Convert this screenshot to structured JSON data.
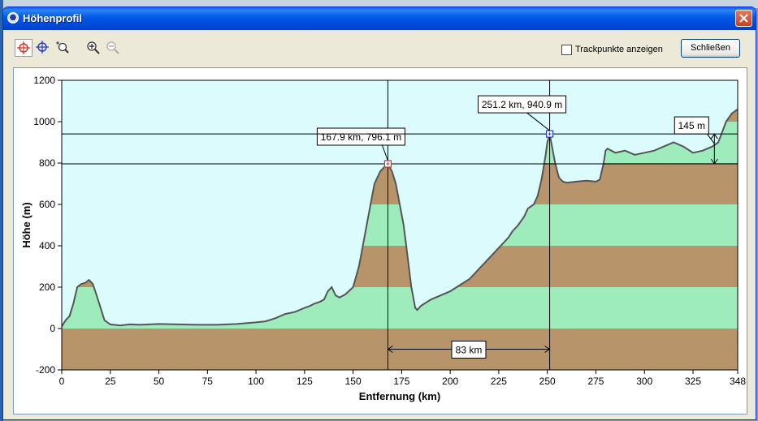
{
  "window": {
    "title": "Höhenprofil",
    "close_glyph": "×"
  },
  "toolbar": {
    "tools": [
      {
        "name": "crosshair-red-icon",
        "active": true
      },
      {
        "name": "crosshair-blue-icon",
        "active": false
      },
      {
        "name": "zoom-area-icon",
        "active": false
      },
      {
        "name": "zoom-in-icon",
        "active": false
      },
      {
        "name": "zoom-out-icon",
        "active": false
      }
    ],
    "trackpoints_label": "Trackpunkte anzeigen",
    "trackpoints_checked": false,
    "close_label": "Schließen"
  },
  "colors": {
    "sky": "#dbfbfc",
    "band_brown": "#b8946a",
    "band_green": "#9eecbc",
    "profile_line": "#555555",
    "marker_red": "#d9342b",
    "marker_blue": "#2a3fbf"
  },
  "chart_data": {
    "type": "area",
    "title": "",
    "xlabel": "Entfernung   (km)",
    "ylabel": "Höhe (m)",
    "xlim": [
      0,
      348
    ],
    "ylim": [
      -200,
      1200
    ],
    "x_ticks": [
      "0",
      "25",
      "50",
      "75",
      "100",
      "125",
      "150",
      "175",
      "200",
      "225",
      "250",
      "275",
      "300",
      "325",
      "348"
    ],
    "y_ticks": [
      "1200",
      "1000",
      "800",
      "600",
      "400",
      "200",
      "0",
      "-200"
    ],
    "bands": [
      {
        "from": -200,
        "to": 0,
        "color": "brown"
      },
      {
        "from": 0,
        "to": 200,
        "color": "green"
      },
      {
        "from": 200,
        "to": 400,
        "color": "brown"
      },
      {
        "from": 400,
        "to": 600,
        "color": "green"
      },
      {
        "from": 600,
        "to": 800,
        "color": "brown"
      },
      {
        "from": 800,
        "to": 1000,
        "color": "green"
      },
      {
        "from": 1000,
        "to": 1200,
        "color": "brown"
      }
    ],
    "x": [
      0,
      2,
      4,
      6,
      8,
      10,
      12,
      14,
      16,
      18,
      20,
      22,
      25,
      30,
      35,
      40,
      50,
      60,
      70,
      80,
      90,
      100,
      105,
      110,
      115,
      120,
      125,
      128,
      130,
      133,
      135,
      137,
      139,
      141,
      143,
      146,
      150,
      153,
      155,
      158,
      161,
      164,
      166,
      167.9,
      170,
      172,
      174,
      176,
      178,
      180,
      182,
      183,
      185,
      190,
      195,
      200,
      205,
      210,
      215,
      220,
      225,
      230,
      232,
      235,
      238,
      240,
      243,
      245,
      247,
      249,
      250,
      251.2,
      252,
      254,
      256,
      258,
      260,
      265,
      270,
      275,
      277,
      279,
      280,
      281,
      285,
      290,
      295,
      300,
      305,
      310,
      315,
      320,
      325,
      330,
      335,
      338,
      340,
      342,
      345,
      348
    ],
    "values": [
      10,
      40,
      60,
      120,
      200,
      215,
      220,
      235,
      215,
      160,
      100,
      40,
      20,
      15,
      20,
      18,
      22,
      20,
      18,
      18,
      22,
      30,
      35,
      50,
      70,
      80,
      100,
      110,
      120,
      130,
      140,
      180,
      200,
      160,
      150,
      165,
      200,
      300,
      400,
      550,
      700,
      760,
      780,
      796.1,
      760,
      700,
      600,
      500,
      350,
      200,
      100,
      90,
      110,
      140,
      160,
      180,
      210,
      240,
      290,
      340,
      390,
      440,
      470,
      500,
      540,
      580,
      600,
      640,
      720,
      830,
      900,
      940.9,
      900,
      800,
      730,
      710,
      705,
      710,
      715,
      710,
      720,
      800,
      860,
      870,
      850,
      860,
      840,
      850,
      860,
      880,
      900,
      880,
      850,
      860,
      880,
      900,
      950,
      1000,
      1040,
      1060
    ],
    "markers": [
      {
        "x": 167.9,
        "y": 796.1,
        "label": "167.9 km, 796.1 m",
        "color": "red"
      },
      {
        "x": 251.2,
        "y": 940.9,
        "label": "251.2 km, 940.9 m",
        "color": "blue"
      }
    ],
    "distance_annotation": {
      "label": "83 km",
      "from": 167.9,
      "to": 251.2,
      "y": -100
    },
    "height_annotation": {
      "label": "145 m",
      "x": 336,
      "from": 796.1,
      "to": 940.9
    }
  }
}
